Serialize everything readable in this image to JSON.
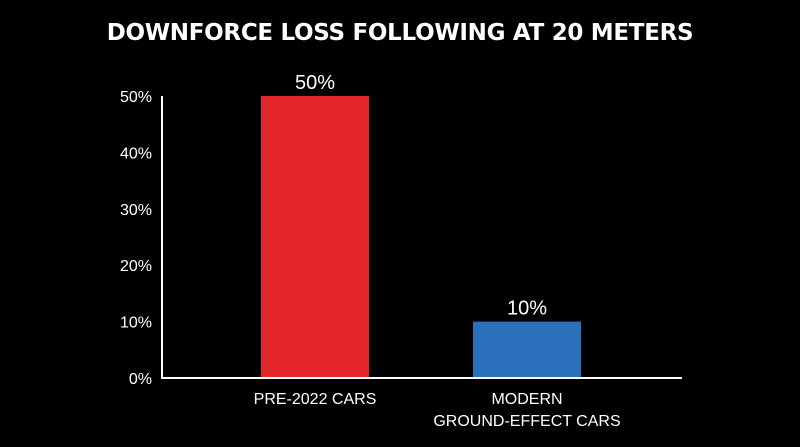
{
  "chart_data": {
    "type": "bar",
    "title": "DOWNFORCE LOSS FOLLOWING AT 20 METERS",
    "xlabel": "",
    "ylabel": "",
    "categories": [
      [
        "PRE-2022 CARS"
      ],
      [
        "MODERN",
        "GROUND-EFFECT CARS"
      ]
    ],
    "values": [
      50,
      10
    ],
    "data_labels": [
      "50%",
      "10%"
    ],
    "bar_colors": [
      "#e3262b",
      "#2a70bd"
    ],
    "ylim": [
      0,
      50
    ],
    "yticks": [
      0,
      10,
      20,
      30,
      40,
      50
    ],
    "ytick_labels": [
      "0%",
      "10%",
      "20%",
      "30%",
      "40%",
      "50%"
    ],
    "grid": false,
    "legend": "none"
  }
}
